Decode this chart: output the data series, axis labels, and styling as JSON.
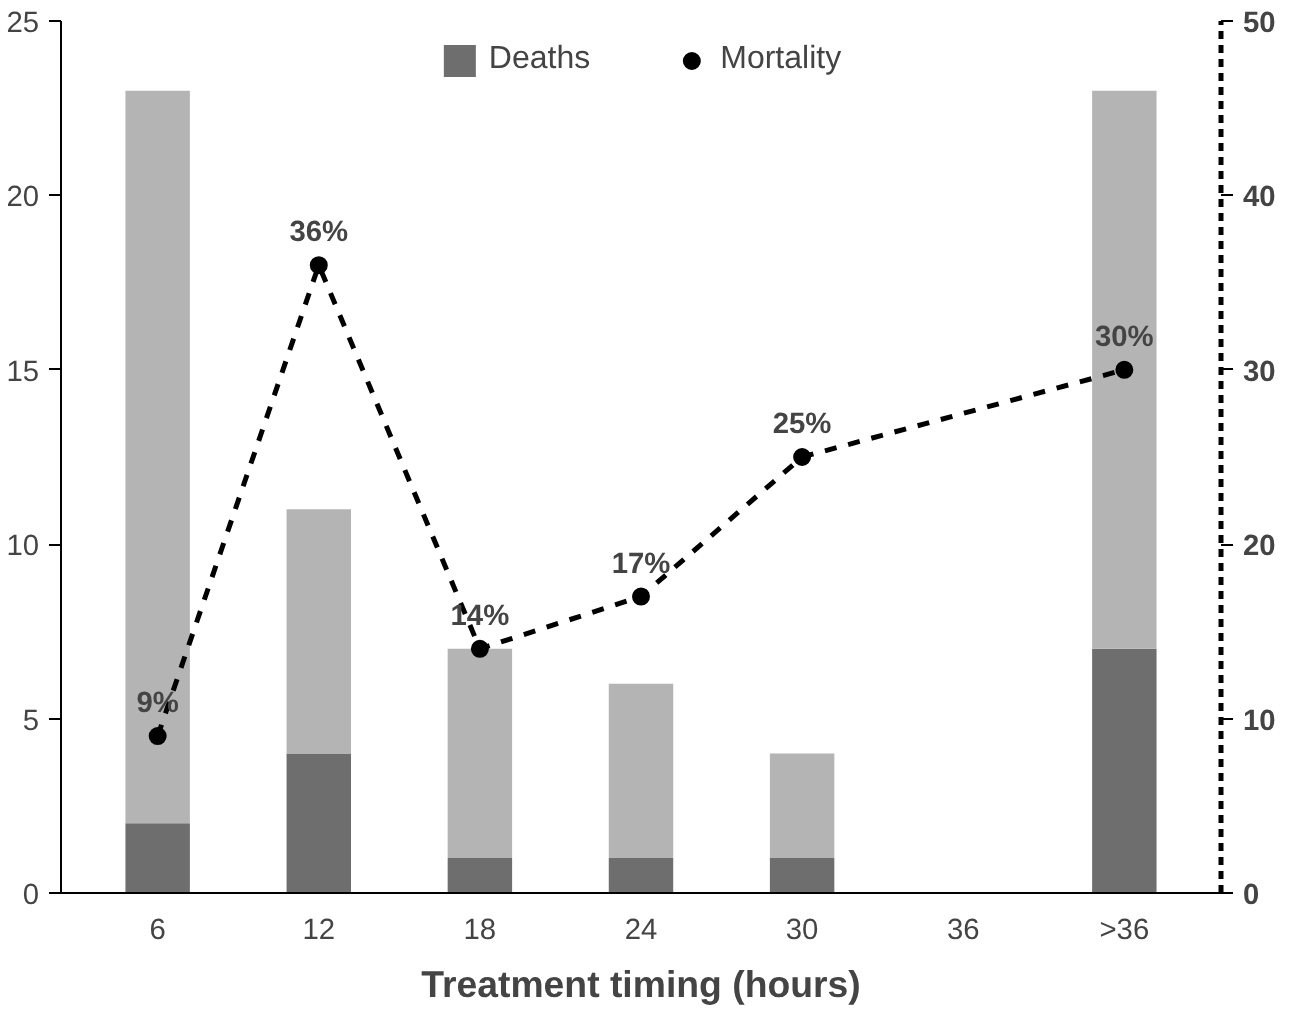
{
  "chart_data": {
    "type": "bar",
    "xlabel": "Treatment timing (hours)",
    "categories": [
      "6",
      "12",
      "18",
      "24",
      "30",
      "36",
      ">36"
    ],
    "stacked": true,
    "series": [
      {
        "name": "Deaths",
        "color": "#6e6e6e",
        "values": [
          2,
          4,
          1,
          1,
          1,
          null,
          7
        ]
      },
      {
        "color": "#b4b4b4",
        "values": [
          21,
          7,
          6,
          5,
          3,
          null,
          16
        ]
      },
      {
        "name": "Mortality",
        "type": "line",
        "axis": "y2",
        "color": "#000000",
        "marker": "circle",
        "line_style": "dashed",
        "x": [
          "6",
          "12",
          "18",
          "24",
          "30",
          ">36"
        ],
        "values": [
          9,
          36,
          14,
          17,
          25,
          30
        ],
        "value_labels": [
          "9%",
          "36%",
          "14%",
          "17%",
          "25%",
          "30%"
        ]
      }
    ],
    "ylim": [
      0,
      25
    ],
    "yticks": [
      0,
      5,
      10,
      15,
      20,
      25
    ],
    "y2lim": [
      0,
      50
    ],
    "y2ticks": [
      0,
      10,
      20,
      30,
      40,
      50
    ],
    "grid": false,
    "legend": "top"
  }
}
